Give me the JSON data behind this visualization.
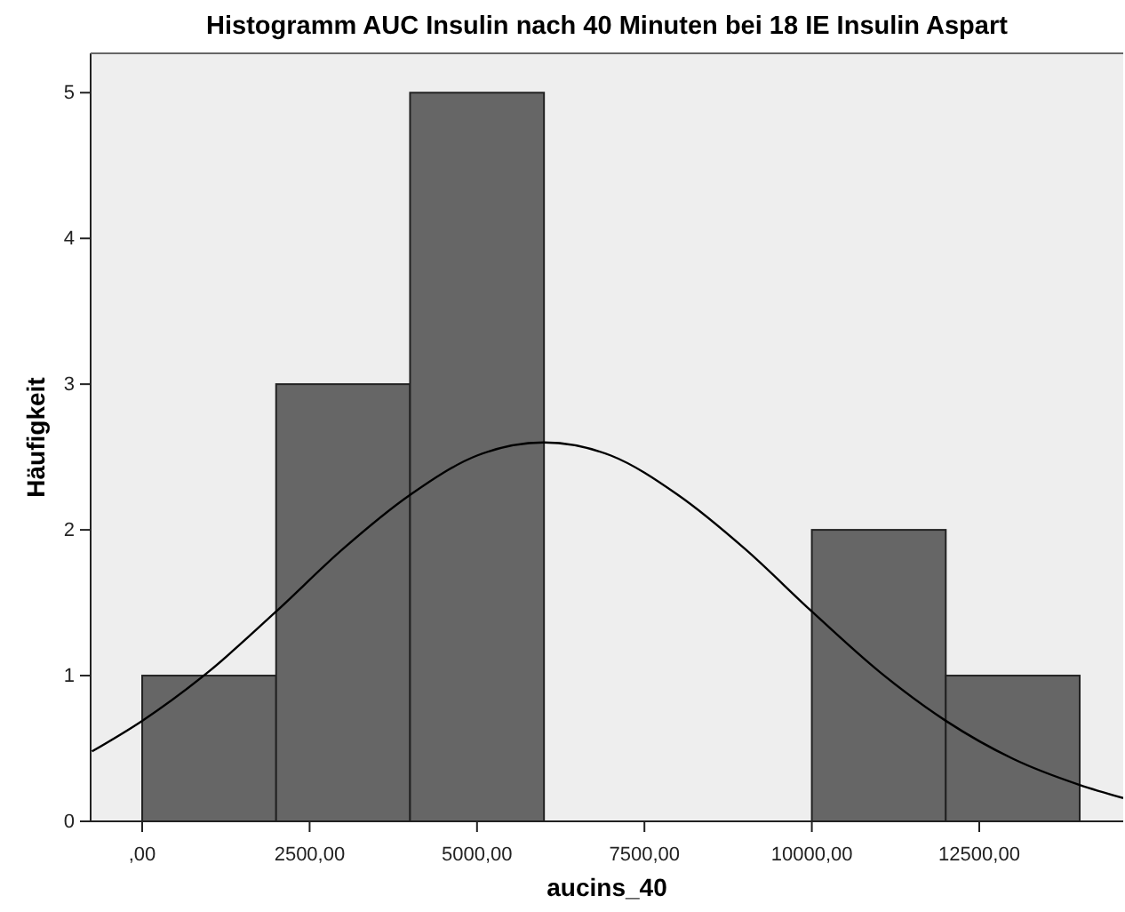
{
  "chart_data": {
    "type": "histogram",
    "title": "Histogramm AUC Insulin nach 40 Minuten bei 18 IE Insulin Aspart",
    "xlabel": "aucins_40",
    "ylabel": "Häufigkeit",
    "bins": [
      0,
      2000,
      4000,
      6000,
      8000,
      10000,
      12000,
      14000
    ],
    "series": [
      {
        "color": "#666666",
        "values": [
          1,
          3,
          5,
          0,
          0,
          2,
          1
        ]
      },
      {
        "type": "line",
        "color": "#000000",
        "x": [
          -750,
          0,
          1000,
          2000,
          3000,
          4000,
          5000,
          6000,
          7000,
          8000,
          9000,
          10000,
          11000,
          12000,
          13000,
          14000,
          14650
        ],
        "values": [
          0.48,
          0.69,
          1.03,
          1.44,
          1.87,
          2.24,
          2.51,
          2.6,
          2.51,
          2.24,
          1.87,
          1.44,
          1.03,
          0.69,
          0.43,
          0.25,
          0.16
        ]
      }
    ],
    "xlim": [
      -770,
      14650
    ],
    "ylim": [
      0,
      5.27
    ],
    "xticks": [
      {
        "value": 0,
        "label": ",00"
      },
      {
        "value": 2500,
        "label": "2500,00"
      },
      {
        "value": 5000,
        "label": "5000,00"
      },
      {
        "value": 7500,
        "label": "7500,00"
      },
      {
        "value": 10000,
        "label": "10000,00"
      },
      {
        "value": 12500,
        "label": "12500,00"
      }
    ],
    "yticks": [
      0,
      1,
      2,
      3,
      4,
      5
    ],
    "grid": false,
    "marker": "none",
    "line_style": "solid"
  }
}
